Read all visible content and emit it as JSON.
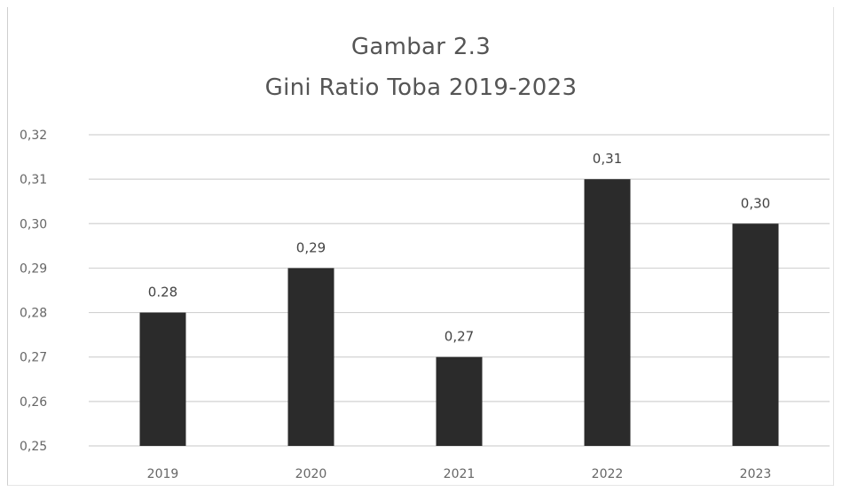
{
  "chart_data": {
    "type": "bar",
    "title": "Gambar 2.3",
    "subtitle": "Gini Ratio Toba 2019-2023",
    "xlabel": "",
    "ylabel": "",
    "categories": [
      "2019",
      "2020",
      "2021",
      "2022",
      "2023"
    ],
    "values": [
      0.28,
      0.29,
      0.27,
      0.31,
      0.3
    ],
    "data_labels": [
      "0.28",
      "0,29",
      "0,27",
      "0,31",
      "0,30"
    ],
    "ylim": [
      0.25,
      0.32
    ],
    "yticks": [
      0.25,
      0.26,
      0.27,
      0.28,
      0.29,
      0.3,
      0.31,
      0.32
    ],
    "ytick_labels": [
      "0,25",
      "0,26",
      "0,27",
      "0,28",
      "0,29",
      "0,30",
      "0,31",
      "0,32"
    ],
    "grid": true,
    "legend": "none",
    "bar_color": "#2b2b2b",
    "grid_color": "#d2d2d2"
  }
}
